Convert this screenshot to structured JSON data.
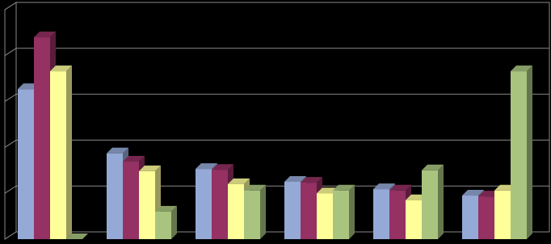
{
  "chart_data": {
    "type": "bar3d",
    "categories": [
      null,
      null,
      null,
      null,
      null,
      null
    ],
    "series": [
      {
        "color": "#95a9d6",
        "values": [
          3.27,
          1.87,
          1.53,
          1.25,
          1.09,
          0.95
        ]
      },
      {
        "color": "#953163",
        "values": [
          4.4,
          1.69,
          1.51,
          1.23,
          1.06,
          0.93
        ]
      },
      {
        "color": "#ffff99",
        "values": [
          3.66,
          1.48,
          1.2,
          1.0,
          0.85,
          1.06
        ]
      },
      {
        "color": "#a9c47f",
        "values": [
          0,
          0.6,
          1.06,
          1.06,
          1.5,
          3.66
        ]
      }
    ],
    "ylim": [
      0,
      5
    ],
    "yticks": [
      0,
      1,
      2,
      3,
      4,
      5
    ],
    "grid": true
  }
}
